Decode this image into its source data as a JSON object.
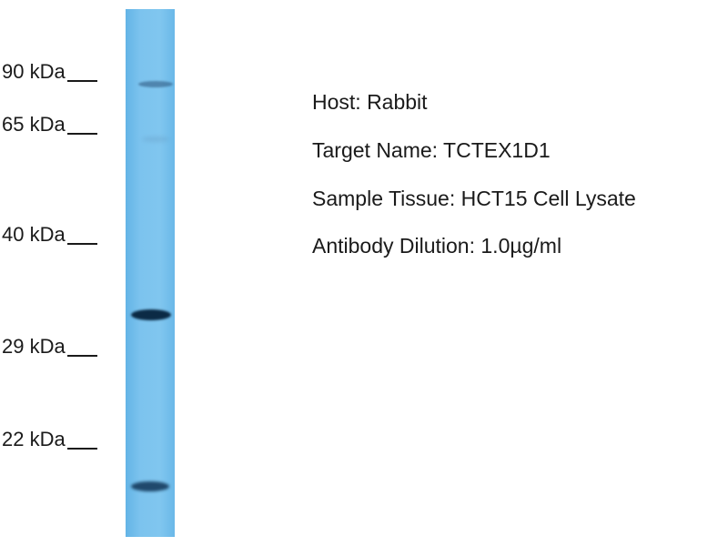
{
  "markers": [
    "90 kDa",
    "65 kDa",
    "40 kDa",
    "29 kDa",
    "22 kDa"
  ],
  "info": {
    "host": "Host: Rabbit",
    "target": "Target Name: TCTEX1D1",
    "tissue": "Sample Tissue: HCT15 Cell Lysate",
    "dilution": "Antibody Dilution: 1.0µg/ml"
  },
  "colors": {
    "lane": "#7cc3ee",
    "band": "#0b2a45"
  }
}
